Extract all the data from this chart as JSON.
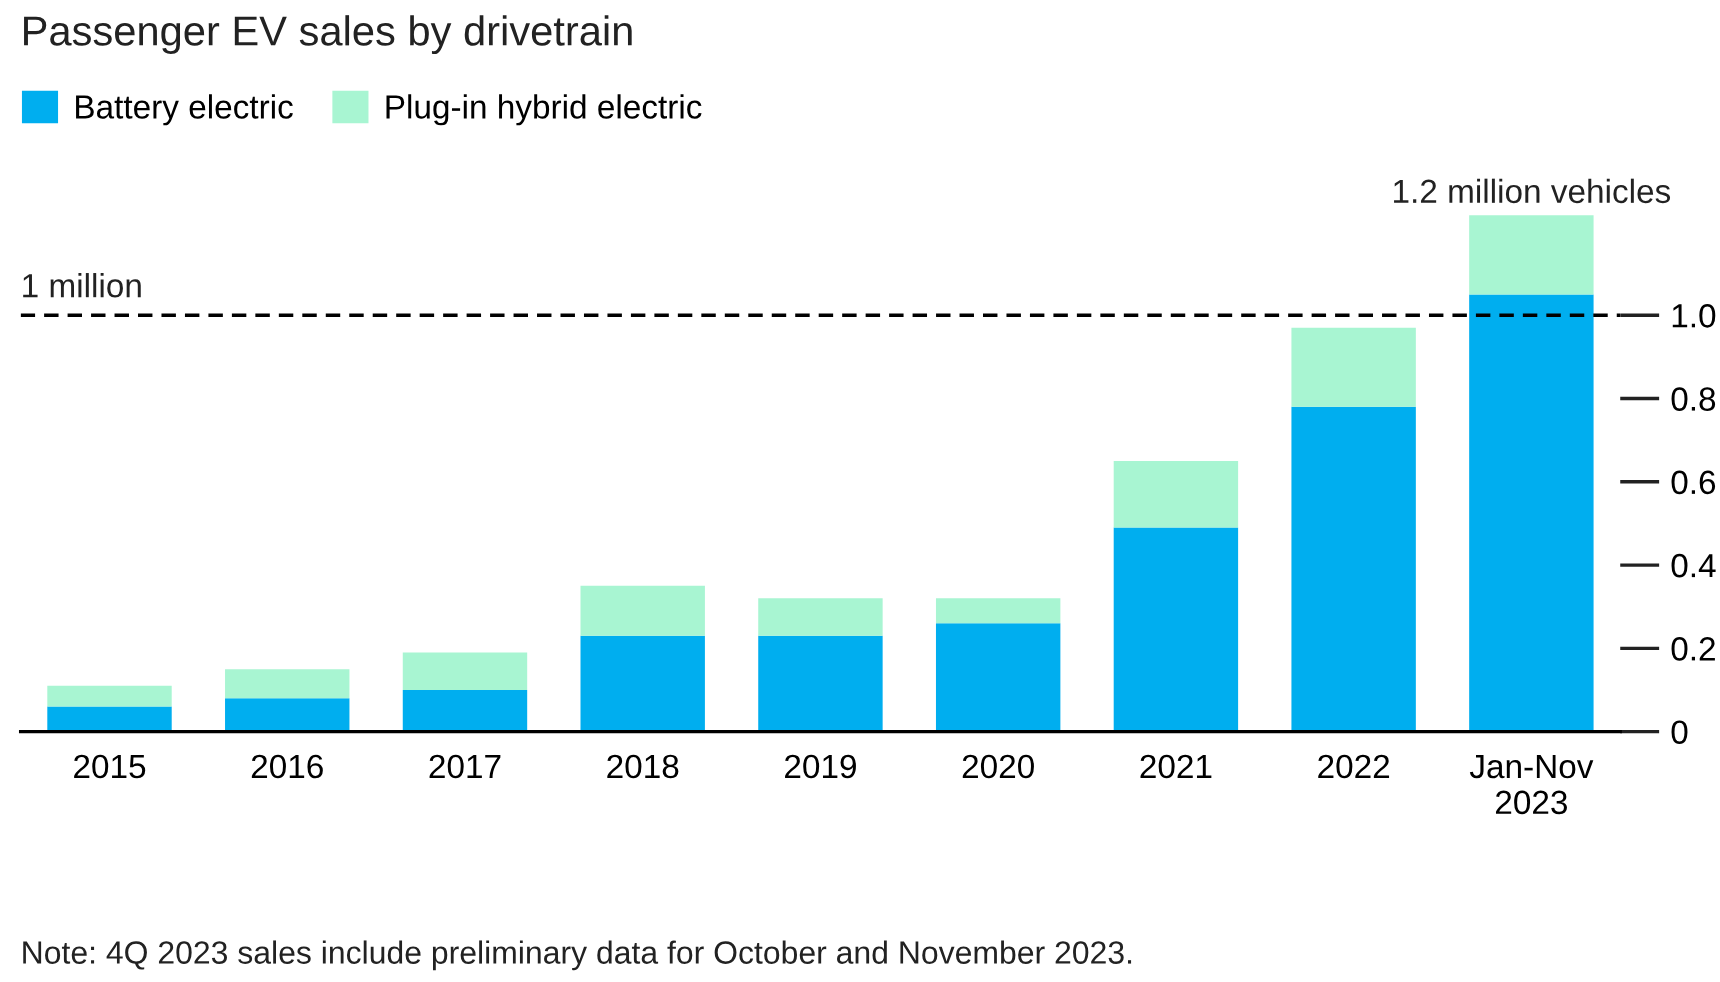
{
  "chart_data": {
    "type": "bar",
    "stacked": true,
    "title": "Passenger EV sales by drivetrain",
    "categories": [
      "2015",
      "2016",
      "2017",
      "2018",
      "2019",
      "2020",
      "2021",
      "2022",
      "Jan-Nov\n2023"
    ],
    "series": [
      {
        "name": "Battery electric",
        "color": "#00aeef",
        "values": [
          0.06,
          0.08,
          0.1,
          0.23,
          0.23,
          0.26,
          0.49,
          0.78,
          1.05
        ]
      },
      {
        "name": "Plug-in hybrid electric",
        "color": "#a8f5d2",
        "values": [
          0.05,
          0.07,
          0.09,
          0.12,
          0.09,
          0.06,
          0.16,
          0.19,
          0.19
        ]
      }
    ],
    "ylim": [
      0,
      1.25
    ],
    "yticks": [
      0,
      0.2,
      0.4,
      0.6,
      0.8,
      {
        "value": 1.0,
        "label": "1.0"
      }
    ],
    "ref_lines": [
      {
        "axis": "y",
        "value": 1.0,
        "label": "1 million",
        "color": "#000000",
        "line_style": "dashed"
      }
    ],
    "annotations": [
      {
        "text": "1.2 million vehicles",
        "x": "Jan-Nov\n2023",
        "y": 1.24
      },
      "Note: 4Q 2023 sales include preliminary data for October and November 2023."
    ],
    "legend": "top left",
    "grid": false
  }
}
